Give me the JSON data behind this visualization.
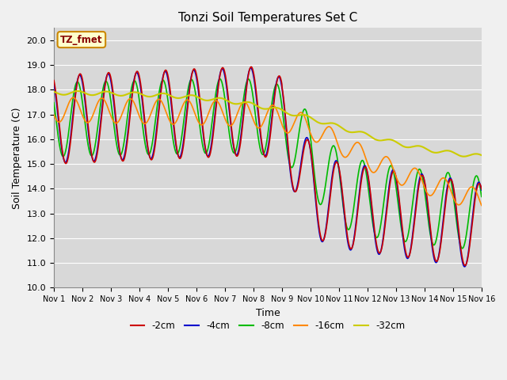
{
  "title": "Tonzi Soil Temperatures Set C",
  "xlabel": "Time",
  "ylabel": "Soil Temperature (C)",
  "ylim": [
    10.0,
    20.5
  ],
  "xlim": [
    0,
    15
  ],
  "xtick_labels": [
    "Nov 1",
    "Nov 2",
    "Nov 3",
    "Nov 4",
    "Nov 5",
    "Nov 6",
    "Nov 7",
    "Nov 8",
    "Nov 9",
    "Nov 10",
    "Nov 11",
    "Nov 12",
    "Nov 13",
    "Nov 14",
    "Nov 15",
    "Nov 16"
  ],
  "ytick_values": [
    10.0,
    11.0,
    12.0,
    13.0,
    14.0,
    15.0,
    16.0,
    17.0,
    18.0,
    19.0,
    20.0
  ],
  "colors": {
    "2cm": "#cc0000",
    "4cm": "#0000cc",
    "8cm": "#00bb00",
    "16cm": "#ff8800",
    "32cm": "#cccc00"
  },
  "label_box_color": "#ffffcc",
  "label_box_edge": "#cc8800",
  "label_text": "TZ_fmet",
  "label_text_color": "#880000",
  "bg_color": "#d8d8d8",
  "grid_color": "#ffffff",
  "legend_labels": [
    "-2cm",
    "-4cm",
    "-8cm",
    "-16cm",
    "-32cm"
  ]
}
